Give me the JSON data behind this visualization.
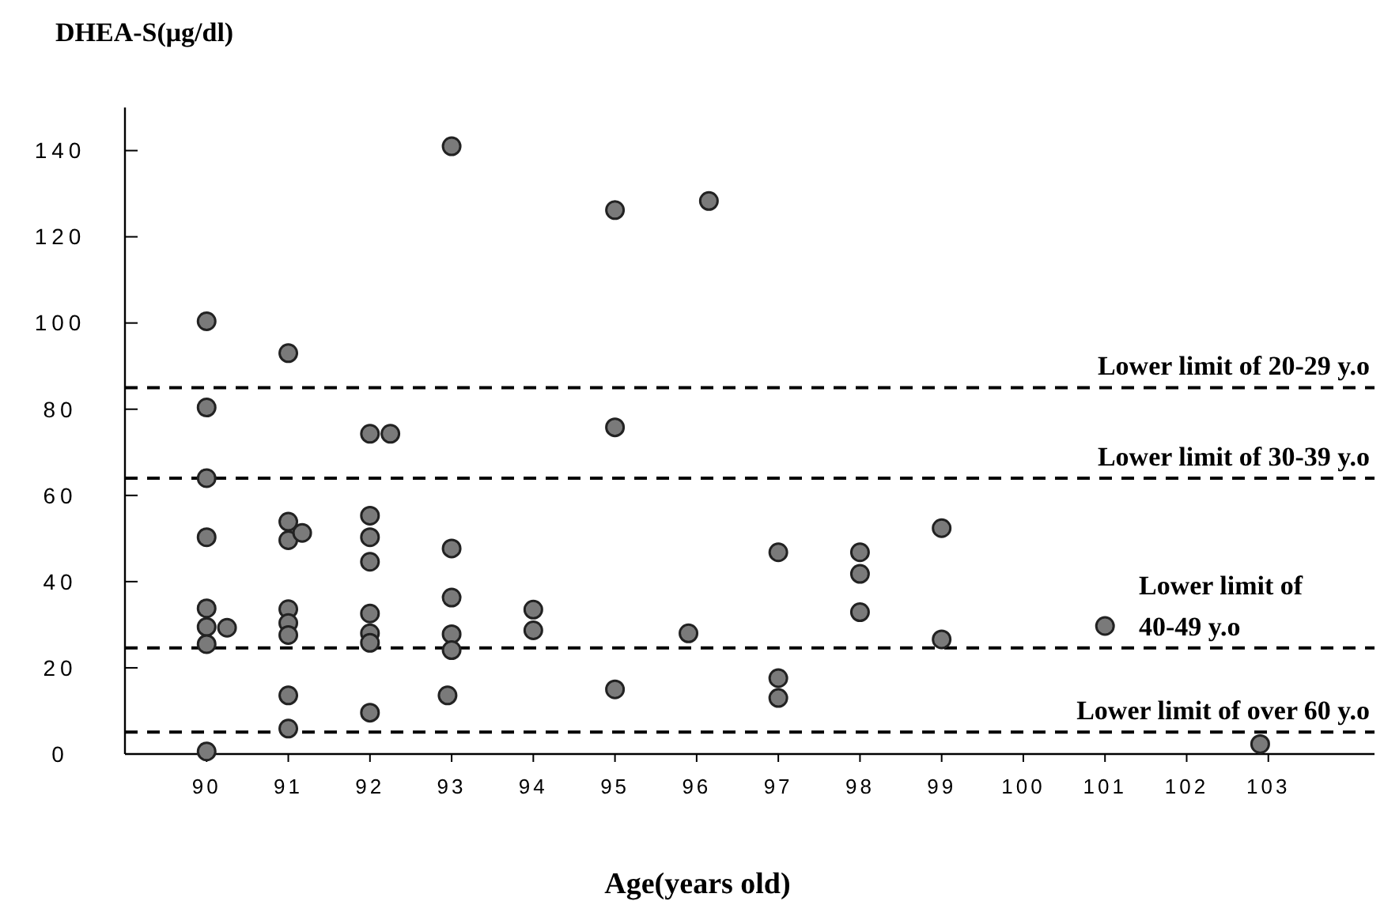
{
  "chart_data": {
    "type": "scatter",
    "ylabel": "DHEA-S(μg/dl)",
    "xlabel": "Age(years old)",
    "x": [
      90,
      90,
      90,
      90,
      90,
      90,
      90.25,
      90,
      90,
      91,
      91,
      91,
      91,
      91,
      91,
      91,
      91,
      91.17,
      92,
      92.25,
      92,
      92,
      92,
      92,
      92,
      92,
      92,
      93,
      93,
      93,
      93,
      93,
      92.95,
      94,
      94,
      95,
      95,
      95,
      96.15,
      95.9,
      97,
      97,
      97,
      98,
      98,
      98,
      99,
      99,
      101,
      102.9
    ],
    "series": [
      {
        "color": "#7a7a7a",
        "values": [
          100.4,
          80.4,
          64,
          50.3,
          33.8,
          29.5,
          29.3,
          25.5,
          0.6,
          93,
          33.6,
          30.4,
          27.6,
          13.6,
          5.9,
          53.9,
          49.6,
          51.3,
          74.3,
          74.3,
          55.3,
          50.3,
          44.6,
          32.6,
          28,
          25.8,
          9.6,
          141,
          47.7,
          36.3,
          27.8,
          24.1,
          13.6,
          33.5,
          28.7,
          126.2,
          75.8,
          15,
          128.3,
          28,
          46.8,
          17.6,
          13,
          46.8,
          41.8,
          32.9,
          52.4,
          26.6,
          29.7,
          2.3
        ]
      }
    ],
    "xlim": [
      89,
      104.3
    ],
    "xticks": [
      90,
      91,
      92,
      93,
      94,
      95,
      96,
      97,
      98,
      99,
      100,
      101,
      102,
      103
    ],
    "ylim": [
      0,
      150
    ],
    "yticks": [
      0,
      20,
      40,
      60,
      80,
      100,
      120,
      140
    ],
    "marker": "circle",
    "ref_lines": [
      {
        "axis": "y",
        "value": 85,
        "label": "Lower limit of 20-29 y.o",
        "line_style": "dashed",
        "color": "#000000"
      },
      {
        "axis": "y",
        "value": 64,
        "label": "Lower limit of 30-39 y.o",
        "line_style": "dashed",
        "color": "#000000"
      },
      {
        "axis": "y",
        "value": 24.6,
        "label": "Lower limit of\n40-49 y.o",
        "line_style": "dashed",
        "color": "#000000"
      },
      {
        "axis": "y",
        "value": 5.1,
        "label": "Lower limit of over 60 y.o",
        "line_style": "dashed",
        "color": "#000000"
      }
    ]
  }
}
